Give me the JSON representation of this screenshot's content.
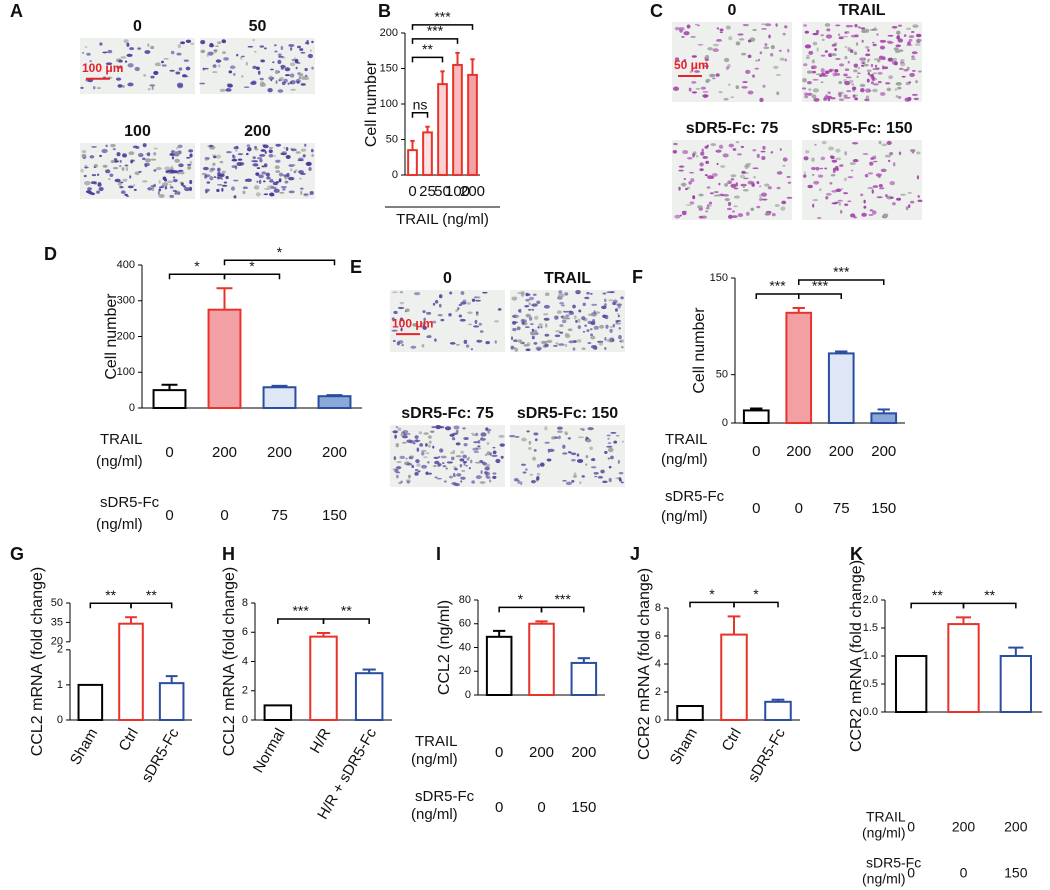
{
  "image_panels": [
    {
      "panel": "A",
      "labels": [
        "0",
        "50",
        "100",
        "200"
      ],
      "scale_bar": "100 μm"
    },
    {
      "panel": "C",
      "labels": [
        "0",
        "TRAIL",
        "sDR5-Fc: 75",
        "sDR5-Fc: 150"
      ],
      "scale_bar": "50 μm"
    },
    {
      "panel": "E",
      "labels": [
        "0",
        "TRAIL",
        "sDR5-Fc: 75",
        "sDR5-Fc: 150"
      ],
      "scale_bar": "100 μm"
    }
  ],
  "chart_data": [
    {
      "type": "bar",
      "panel": "B",
      "ylabel": "Cell number",
      "xlabel": "TRAIL (ng/ml)",
      "categories": [
        "0",
        "25",
        "50",
        "100",
        "200"
      ],
      "values": [
        35,
        60,
        128,
        155,
        141
      ],
      "errors": [
        13,
        8,
        18,
        17,
        22
      ],
      "fill_colors": [
        "#ffffff",
        "#fde3e3",
        "#fbd2d4",
        "#f7bcbf",
        "#f2a3a7"
      ],
      "edge_colors": [
        "#e8332a",
        "#e8332a",
        "#e8332a",
        "#e8332a",
        "#e8332a"
      ],
      "ylim": [
        0,
        200
      ],
      "yticks": [
        0,
        50,
        100,
        150,
        200
      ],
      "brackets": [
        {
          "from": 0,
          "to": 1,
          "text": "ns"
        },
        {
          "from": 0,
          "to": 2,
          "text": "**"
        },
        {
          "from": 0,
          "to": 3,
          "text": "***"
        },
        {
          "from": 0,
          "to": 4,
          "text": "***"
        }
      ]
    },
    {
      "type": "bar",
      "panel": "D",
      "ylabel": "Cell number",
      "rows": [
        {
          "label": [
            "TRAIL",
            "(ng/ml)"
          ],
          "levels": [
            0,
            200,
            200,
            200
          ]
        },
        {
          "label": [
            "sDR5-Fc",
            "(ng/ml)"
          ],
          "levels": [
            0,
            0,
            75,
            150
          ]
        }
      ],
      "values": [
        50,
        275,
        58,
        33
      ],
      "errors": [
        15,
        60,
        4,
        3
      ],
      "fill_colors": [
        "#ffffff",
        "#f2a0a3",
        "#dfe7f6",
        "#8aa8d8"
      ],
      "edge_colors": [
        "#000000",
        "#e8332a",
        "#2a4da0",
        "#2a4da0"
      ],
      "ylim": [
        0,
        400
      ],
      "yticks": [
        0,
        100,
        200,
        300,
        400
      ],
      "brackets": [
        {
          "from": 0,
          "to": 1,
          "text": "*"
        },
        {
          "from": 1,
          "to": 2,
          "text": "*"
        },
        {
          "from": 1,
          "to": 3,
          "text": "*"
        }
      ]
    },
    {
      "type": "bar",
      "panel": "F",
      "ylabel": "Cell number",
      "rows": [
        {
          "label": [
            "TRAIL",
            "(ng/ml)"
          ],
          "levels": [
            0,
            200,
            200,
            200
          ]
        },
        {
          "label": [
            "sDR5-Fc",
            "(ng/ml)"
          ],
          "levels": [
            0,
            0,
            75,
            150
          ]
        }
      ],
      "values": [
        13,
        114,
        72,
        10
      ],
      "errors": [
        2,
        5,
        2,
        4
      ],
      "fill_colors": [
        "#ffffff",
        "#f2a0a3",
        "#dfe7f6",
        "#8aa8d8"
      ],
      "edge_colors": [
        "#000000",
        "#e8332a",
        "#2a4da0",
        "#2a4da0"
      ],
      "ylim": [
        0,
        150
      ],
      "yticks": [
        0,
        50,
        150
      ],
      "brackets": [
        {
          "from": 0,
          "to": 1,
          "text": "***"
        },
        {
          "from": 1,
          "to": 2,
          "text": "***"
        },
        {
          "from": 1,
          "to": 3,
          "text": "***"
        }
      ]
    },
    {
      "type": "bar",
      "panel": "G",
      "ylabel": "CCL2 mRNA (fold change)",
      "categories": [
        "Sham",
        "Ctrl",
        "sDR5-Fc"
      ],
      "category_label_angle": -60,
      "values": [
        1,
        34,
        1.05
      ],
      "errors": [
        null,
        5,
        0.2
      ],
      "fill_colors": [
        "#ffffff",
        "#ffffff",
        "#ffffff"
      ],
      "edge_colors": [
        "#000000",
        "#e8332a",
        "#2a4da0"
      ],
      "ylim": [
        0,
        50
      ],
      "axis_break": [
        2,
        20
      ],
      "yticks": [
        0,
        1,
        2,
        20,
        35,
        50
      ],
      "brackets": [
        {
          "from": 0,
          "to": 1,
          "text": "**"
        },
        {
          "from": 1,
          "to": 2,
          "text": "**"
        }
      ]
    },
    {
      "type": "bar",
      "panel": "H",
      "ylabel": "CCL2 mRNA (fold change)",
      "categories": [
        "Normal",
        "H/R",
        "H/R + sDR5-Fc"
      ],
      "category_label_angle": -60,
      "values": [
        1,
        5.7,
        3.2
      ],
      "errors": [
        null,
        0.25,
        0.25
      ],
      "fill_colors": [
        "#ffffff",
        "#ffffff",
        "#ffffff"
      ],
      "edge_colors": [
        "#000000",
        "#e8332a",
        "#2a4da0"
      ],
      "ylim": [
        0,
        8
      ],
      "yticks": [
        0,
        2,
        4,
        6,
        8
      ],
      "brackets": [
        {
          "from": 0,
          "to": 1,
          "text": "***"
        },
        {
          "from": 1,
          "to": 2,
          "text": "**"
        }
      ]
    },
    {
      "type": "bar",
      "panel": "I",
      "ylabel": "CCL2 (ng/ml)",
      "rows": [
        {
          "label": [
            "TRAIL",
            "(ng/ml)"
          ],
          "levels": [
            0,
            200,
            200
          ]
        },
        {
          "label": [
            "sDR5-Fc",
            "(ng/ml)"
          ],
          "levels": [
            0,
            0,
            150
          ]
        }
      ],
      "values": [
        49,
        60,
        27
      ],
      "errors": [
        5,
        2,
        4
      ],
      "fill_colors": [
        "#ffffff",
        "#ffffff",
        "#ffffff"
      ],
      "edge_colors": [
        "#000000",
        "#e8332a",
        "#2a4da0"
      ],
      "ylim": [
        0,
        80
      ],
      "yticks": [
        0,
        20,
        40,
        60,
        80
      ],
      "brackets": [
        {
          "from": 0,
          "to": 1,
          "text": "*"
        },
        {
          "from": 1,
          "to": 2,
          "text": "***"
        }
      ]
    },
    {
      "type": "bar",
      "panel": "J",
      "ylabel": "CCR2 mRNA (fold change)",
      "categories": [
        "Sham",
        "Ctrl",
        "sDR5-Fc"
      ],
      "category_label_angle": -60,
      "values": [
        1,
        6.1,
        1.3
      ],
      "errors": [
        null,
        1.3,
        0.15
      ],
      "fill_colors": [
        "#ffffff",
        "#ffffff",
        "#ffffff"
      ],
      "edge_colors": [
        "#000000",
        "#e8332a",
        "#2a4da0"
      ],
      "ylim": [
        0,
        8
      ],
      "yticks": [
        0,
        2,
        4,
        6,
        8
      ],
      "brackets": [
        {
          "from": 0,
          "to": 1,
          "text": "*"
        },
        {
          "from": 1,
          "to": 2,
          "text": "*"
        }
      ]
    },
    {
      "type": "bar",
      "panel": "K",
      "ylabel": "CCR2 mRNA (fold change)",
      "rows": [
        {
          "label": [
            "TRAIL",
            "(ng/ml)"
          ],
          "levels": [
            0,
            200,
            200
          ]
        },
        {
          "label": [
            "sDR5-Fc",
            "(ng/ml)"
          ],
          "levels": [
            0,
            0,
            150
          ]
        }
      ],
      "values": [
        1.0,
        1.57,
        1.0
      ],
      "errors": [
        null,
        0.12,
        0.15
      ],
      "fill_colors": [
        "#ffffff",
        "#ffffff",
        "#ffffff"
      ],
      "edge_colors": [
        "#000000",
        "#e8332a",
        "#2a4da0"
      ],
      "ylim": [
        0,
        2
      ],
      "yticks": [
        {
          "value": 0,
          "label": "0.0"
        },
        {
          "value": 0.5,
          "label": "0.5"
        },
        {
          "value": 1,
          "label": "1.0"
        },
        {
          "value": 1.5,
          "label": "1.5"
        },
        {
          "value": 2,
          "label": "2.0"
        }
      ],
      "brackets": [
        {
          "from": 0,
          "to": 1,
          "text": "**"
        },
        {
          "from": 1,
          "to": 2,
          "text": "**"
        }
      ]
    }
  ]
}
